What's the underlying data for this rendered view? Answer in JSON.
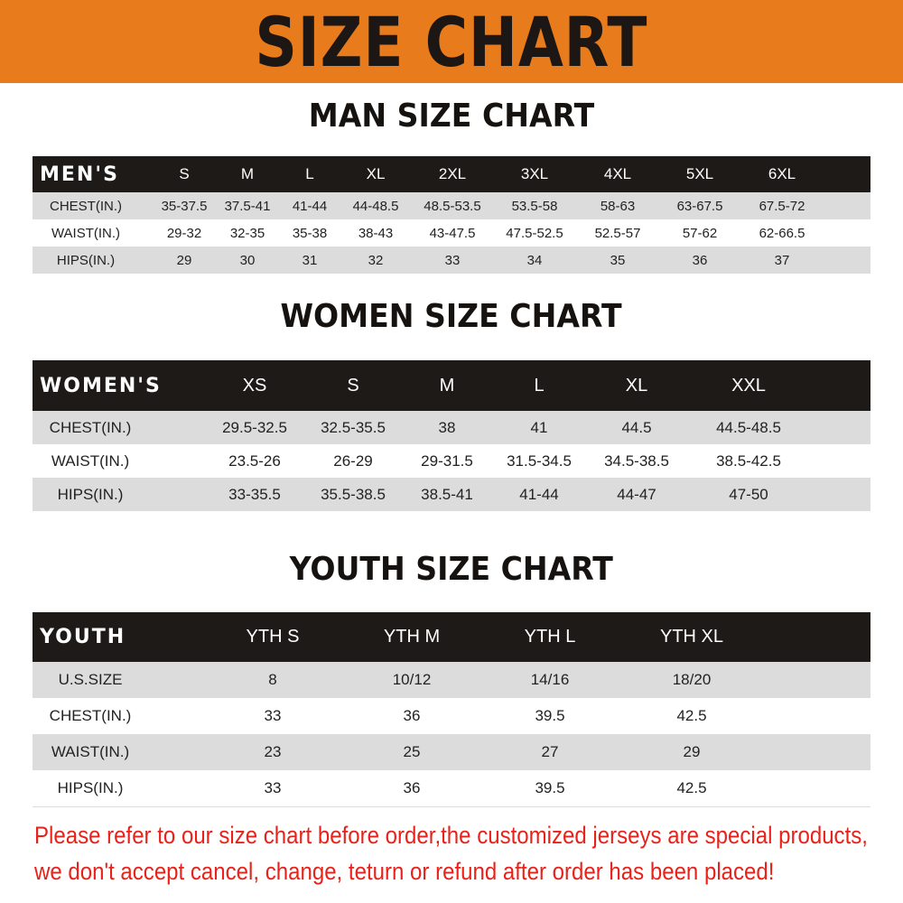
{
  "banner": "SIZE CHART",
  "men": {
    "title": "MAN SIZE CHART",
    "header": [
      "MEN'S",
      "S",
      "M",
      "L",
      "XL",
      "2XL",
      "3XL",
      "4XL",
      "5XL",
      "6XL"
    ],
    "rows": [
      [
        "CHEST(IN.)",
        "35-37.5",
        "37.5-41",
        "41-44",
        "44-48.5",
        "48.5-53.5",
        "53.5-58",
        "58-63",
        "63-67.5",
        "67.5-72"
      ],
      [
        "WAIST(IN.)",
        "29-32",
        "32-35",
        "35-38",
        "38-43",
        "43-47.5",
        "47.5-52.5",
        "52.5-57",
        "57-62",
        "62-66.5"
      ],
      [
        "HIPS(IN.)",
        "29",
        "30",
        "31",
        "32",
        "33",
        "34",
        "35",
        "36",
        "37"
      ]
    ]
  },
  "women": {
    "title": "WOMEN SIZE CHART",
    "header": [
      "WOMEN'S",
      "XS",
      "S",
      "M",
      "L",
      "XL",
      "XXL"
    ],
    "rows": [
      [
        "CHEST(IN.)",
        "29.5-32.5",
        "32.5-35.5",
        "38",
        "41",
        "44.5",
        "44.5-48.5"
      ],
      [
        "WAIST(IN.)",
        "23.5-26",
        "26-29",
        "29-31.5",
        "31.5-34.5",
        "34.5-38.5",
        "38.5-42.5"
      ],
      [
        "HIPS(IN.)",
        "33-35.5",
        "35.5-38.5",
        "38.5-41",
        "41-44",
        "44-47",
        "47-50"
      ]
    ]
  },
  "youth": {
    "title": "YOUTH SIZE CHART",
    "header": [
      "YOUTH",
      "YTH S",
      "YTH M",
      "YTH L",
      "YTH XL"
    ],
    "rows": [
      [
        "U.S.SIZE",
        "8",
        "10/12",
        "14/16",
        "18/20"
      ],
      [
        "CHEST(IN.)",
        "33",
        "36",
        "39.5",
        "42.5"
      ],
      [
        "WAIST(IN.)",
        "23",
        "25",
        "27",
        "29"
      ],
      [
        "HIPS(IN.)",
        "33",
        "36",
        "39.5",
        "42.5"
      ]
    ]
  },
  "notice": [
    "Please refer to our size chart before order,the customized jerseys are special products,",
    "we don't accept cancel, change, teturn or refund after order has been placed!"
  ],
  "colors": {
    "banner": "#e87b1c",
    "header": "#1e1a17",
    "stripe": "#dcdcdc",
    "notice": "#e8221a"
  }
}
